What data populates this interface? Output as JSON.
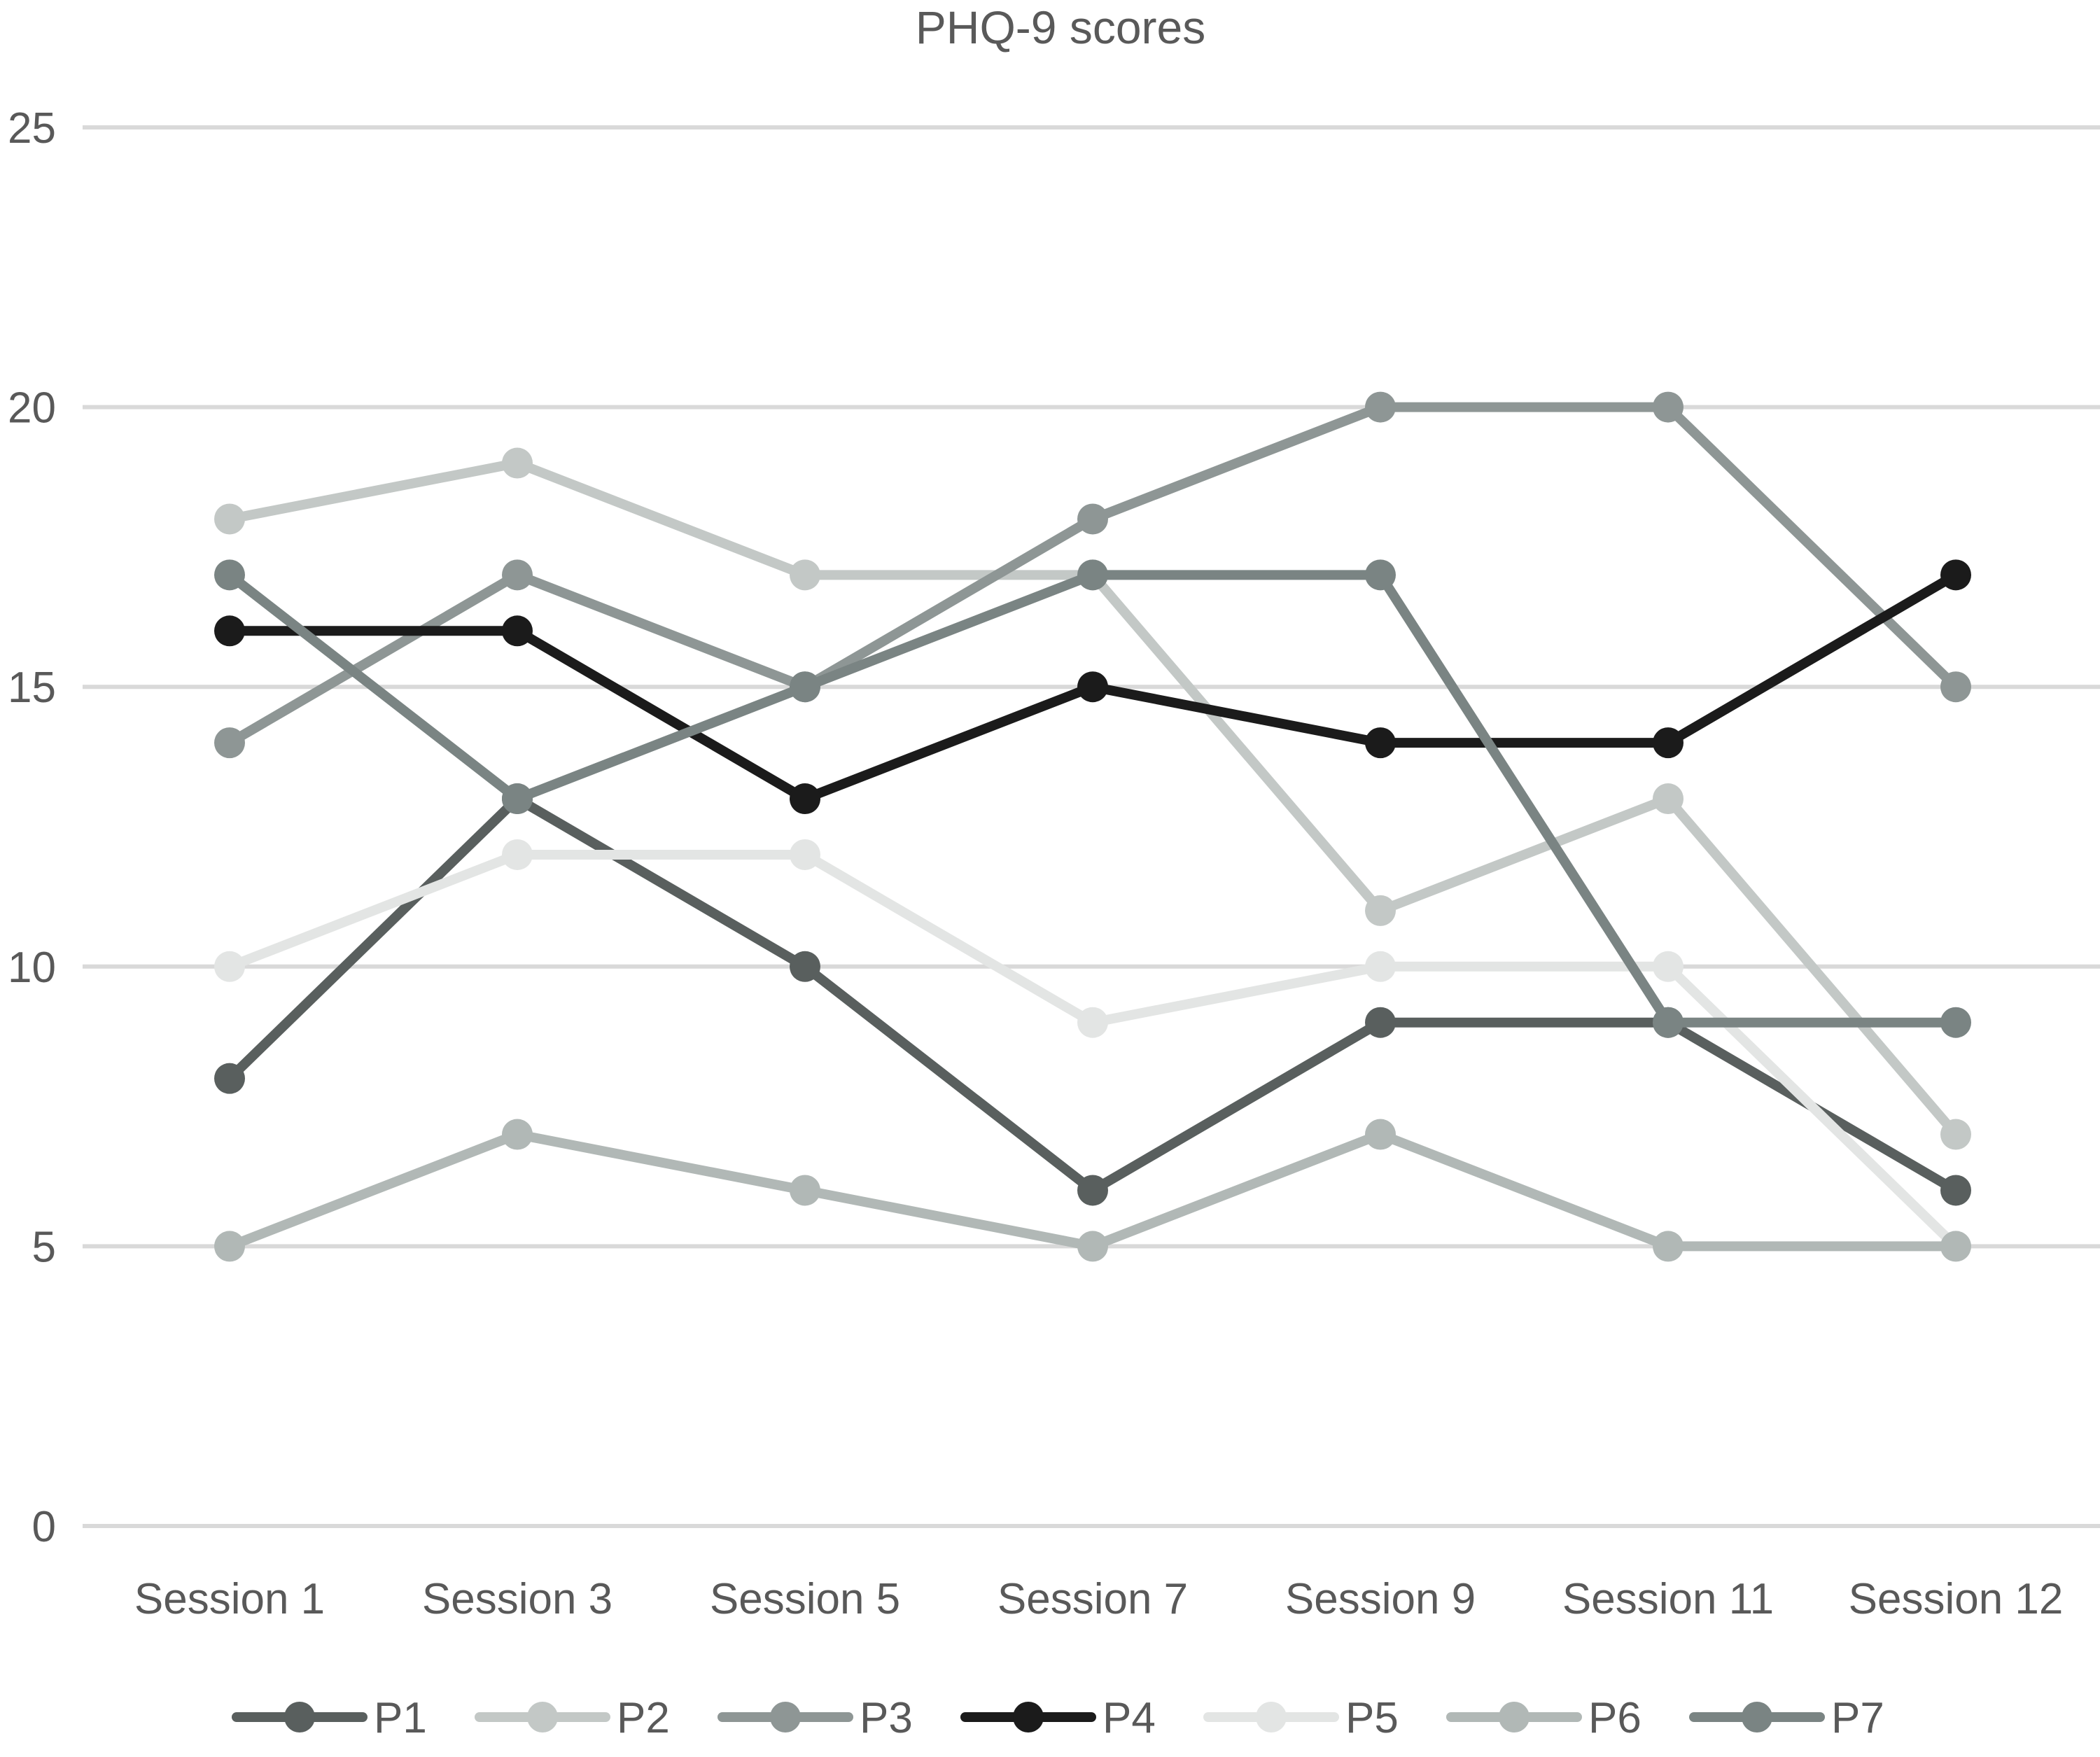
{
  "chart_data": {
    "type": "line",
    "title": "PHQ-9 scores",
    "xlabel": "",
    "ylabel": "",
    "categories": [
      "Session 1",
      "Session 3",
      "Session 5",
      "Session 7",
      "Session 9",
      "Session 11",
      "Session 12"
    ],
    "ylim": [
      0,
      25
    ],
    "yticks": [
      0,
      5,
      10,
      15,
      20,
      25
    ],
    "grid": true,
    "legend_position": "bottom",
    "series": [
      {
        "name": "P1",
        "color": "#595f5e",
        "values": [
          8,
          13,
          10,
          6,
          9,
          9,
          6
        ]
      },
      {
        "name": "P2",
        "color": "#c3c8c6",
        "values": [
          18,
          19,
          17,
          17,
          11,
          13,
          7
        ]
      },
      {
        "name": "P3",
        "color": "#8e9695",
        "values": [
          14,
          17,
          15,
          18,
          20,
          20,
          15
        ]
      },
      {
        "name": "P4",
        "color": "#1b1b1b",
        "values": [
          16,
          16,
          13,
          15,
          14,
          14,
          17
        ]
      },
      {
        "name": "P5",
        "color": "#e3e5e4",
        "values": [
          10,
          12,
          12,
          9,
          10,
          10,
          5
        ]
      },
      {
        "name": "P6",
        "color": "#b1b8b6",
        "values": [
          5,
          7,
          6,
          5,
          7,
          5,
          5
        ]
      },
      {
        "name": "P7",
        "color": "#7a8483",
        "values": [
          17,
          13,
          15,
          17,
          17,
          9,
          9
        ]
      }
    ]
  }
}
